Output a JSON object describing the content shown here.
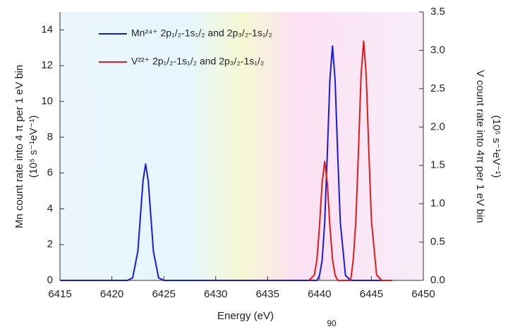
{
  "chart_data": {
    "type": "line",
    "x_label": "Energy (eV)",
    "y_label": "Mn count rate into 4 π per 1 eV bin",
    "y_unit": "(10⁵ s⁻¹eV⁻¹)",
    "y2_label": "V count rate into 4π per 1 eV bin",
    "y2_unit": "(10⁵ s⁻¹eV⁻¹)",
    "annotation": "90",
    "x": [
      6415,
      6421.5,
      6422,
      6422.5,
      6423,
      6423.25,
      6423.5,
      6424,
      6424.5,
      6425,
      6439,
      6439.5,
      6439.75,
      6440,
      6440.25,
      6440.5,
      6440.75,
      6441,
      6441.25,
      6441.5,
      6441.75,
      6442,
      6442.5,
      6443,
      6443.25,
      6443.5,
      6443.75,
      6444,
      6444.25,
      6444.5,
      6444.75,
      6445,
      6445.5,
      6446,
      6447
    ],
    "series": [
      {
        "name": "Mn²⁴⁺ 2p₁/₂-1s₁/₂ and 2p₃/₂-1s₁/₂",
        "color": "#1a1adb",
        "values": [
          0,
          0,
          0.14,
          1.62,
          5.57,
          6.5,
          5.57,
          1.62,
          0.14,
          0,
          0,
          0,
          0,
          0.28,
          1.11,
          3.26,
          7.07,
          11.2,
          13.1,
          11.2,
          7.07,
          3.26,
          0.28,
          0,
          0,
          0,
          0,
          0,
          0,
          0,
          0,
          0,
          0,
          0,
          0
        ]
      },
      {
        "name": "V²²⁺ 2p₁/₂-1s₁/₂ and 2p₃/₂-1s₁/₂",
        "color": "#e01b1b",
        "axis": "y2",
        "values": [
          null,
          null,
          null,
          null,
          null,
          null,
          null,
          null,
          null,
          null,
          0,
          0.07,
          0.27,
          0.71,
          1.27,
          1.55,
          1.27,
          0.71,
          0.27,
          0.07,
          0,
          0,
          0,
          0,
          0.27,
          0.78,
          1.68,
          2.67,
          3.12,
          2.67,
          1.68,
          0.78,
          0.07,
          0,
          0
        ]
      }
    ],
    "xlim": [
      6415,
      6450
    ],
    "xticks": [
      6415,
      6420,
      6425,
      6430,
      6435,
      6440,
      6445,
      6450
    ],
    "ylim": [
      0,
      15
    ],
    "yticks": [
      0,
      2,
      4,
      6,
      8,
      10,
      12,
      14
    ],
    "y2lim": [
      0,
      3.5
    ],
    "y2ticks": [
      {
        "value": 0,
        "label": "0.0"
      },
      0.5,
      {
        "value": 1,
        "label": "1.0"
      },
      1.5,
      {
        "value": 2,
        "label": "2.0"
      },
      2.5,
      {
        "value": 3,
        "label": "3.0"
      },
      3.5
    ]
  }
}
